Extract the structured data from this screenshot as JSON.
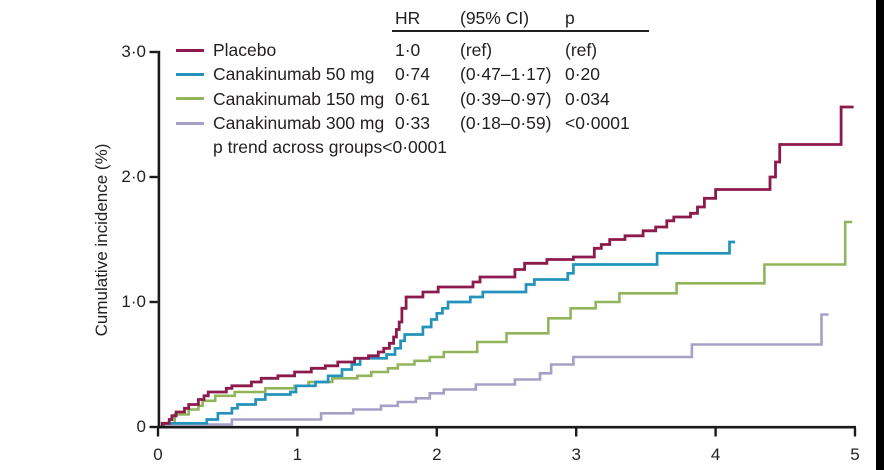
{
  "figure": {
    "y_axis": {
      "label": "Cumulative incidence (%)",
      "tick_labels": [
        "0",
        "1·0",
        "2·0",
        "3·0"
      ],
      "tick_values": [
        0,
        1,
        2,
        3
      ]
    },
    "x_axis": {
      "tick_labels": [
        "0",
        "1",
        "2",
        "3",
        "4",
        "5"
      ],
      "tick_values": [
        0,
        1,
        2,
        3,
        4,
        5
      ]
    },
    "legend": {
      "p_trend": "p trend across groups<0·0001"
    },
    "table": {
      "headers": [
        "HR",
        "(95% CI)",
        "p"
      ],
      "rows": [
        [
          "1·0",
          "(ref)",
          "(ref)"
        ],
        [
          "0·74",
          "(0·47–1·17)",
          "0·20"
        ],
        [
          "0·61",
          "(0·39–0·97)",
          "0·034"
        ],
        [
          "0·33",
          "(0·18–0·59)",
          "<0·0001"
        ]
      ]
    }
  },
  "colors": {
    "placebo": "#8D1A4C",
    "canakinumab_50": "#2493BC",
    "canakinumab_150": "#92B55C",
    "canakinumab_300": "#A7A0C6",
    "text": "#231F20",
    "axis": "#1A1A1A"
  },
  "chart_data": {
    "type": "line",
    "subtype": "step-cumulative-incidence",
    "title": "",
    "xlabel": "",
    "ylabel": "Cumulative incidence (%)",
    "xlim": [
      0,
      5
    ],
    "ylim": [
      0,
      3
    ],
    "x_ticks": [
      0,
      1,
      2,
      3,
      4,
      5
    ],
    "y_ticks": [
      0,
      1,
      2,
      3
    ],
    "grid": false,
    "legend_position": "top-left",
    "annotations": [
      "p trend across groups<0·0001"
    ],
    "series": [
      {
        "name": "Placebo",
        "color": "#8D1A4C",
        "hr": "1·0",
        "ci": "(ref)",
        "p": "(ref)",
        "points": [
          [
            0,
            0
          ],
          [
            0.03,
            0.03
          ],
          [
            0.08,
            0.06
          ],
          [
            0.1,
            0.09
          ],
          [
            0.13,
            0.12
          ],
          [
            0.19,
            0.15
          ],
          [
            0.22,
            0.18
          ],
          [
            0.29,
            0.22
          ],
          [
            0.33,
            0.25
          ],
          [
            0.36,
            0.28
          ],
          [
            0.49,
            0.31
          ],
          [
            0.53,
            0.33
          ],
          [
            0.67,
            0.36
          ],
          [
            0.74,
            0.39
          ],
          [
            0.86,
            0.41
          ],
          [
            0.98,
            0.44
          ],
          [
            1.1,
            0.47
          ],
          [
            1.2,
            0.49
          ],
          [
            1.29,
            0.52
          ],
          [
            1.41,
            0.55
          ],
          [
            1.51,
            0.57
          ],
          [
            1.58,
            0.6
          ],
          [
            1.62,
            0.63
          ],
          [
            1.66,
            0.67
          ],
          [
            1.69,
            0.72
          ],
          [
            1.71,
            0.78
          ],
          [
            1.73,
            0.84
          ],
          [
            1.75,
            0.95
          ],
          [
            1.78,
            1.04
          ],
          [
            1.9,
            1.08
          ],
          [
            2.01,
            1.12
          ],
          [
            2.26,
            1.16
          ],
          [
            2.31,
            1.2
          ],
          [
            2.56,
            1.26
          ],
          [
            2.63,
            1.31
          ],
          [
            2.79,
            1.34
          ],
          [
            2.98,
            1.36
          ],
          [
            3.13,
            1.43
          ],
          [
            3.18,
            1.46
          ],
          [
            3.24,
            1.5
          ],
          [
            3.35,
            1.53
          ],
          [
            3.48,
            1.57
          ],
          [
            3.57,
            1.6
          ],
          [
            3.65,
            1.65
          ],
          [
            3.7,
            1.68
          ],
          [
            3.82,
            1.71
          ],
          [
            3.87,
            1.76
          ],
          [
            3.92,
            1.83
          ],
          [
            4.0,
            1.9
          ],
          [
            4.39,
            2.0
          ],
          [
            4.43,
            2.12
          ],
          [
            4.46,
            2.26
          ],
          [
            4.9,
            2.56
          ],
          [
            4.99,
            2.56
          ]
        ]
      },
      {
        "name": "Canakinumab 50 mg",
        "color": "#2493BC",
        "hr": "0·74",
        "ci": "(0·47–1·17)",
        "p": "0·20",
        "points": [
          [
            0,
            0
          ],
          [
            0.04,
            0.03
          ],
          [
            0.35,
            0.06
          ],
          [
            0.43,
            0.11
          ],
          [
            0.53,
            0.15
          ],
          [
            0.57,
            0.18
          ],
          [
            0.7,
            0.22
          ],
          [
            0.77,
            0.26
          ],
          [
            0.95,
            0.28
          ],
          [
            0.99,
            0.33
          ],
          [
            1.13,
            0.36
          ],
          [
            1.22,
            0.41
          ],
          [
            1.32,
            0.46
          ],
          [
            1.39,
            0.5
          ],
          [
            1.45,
            0.55
          ],
          [
            1.64,
            0.58
          ],
          [
            1.7,
            0.63
          ],
          [
            1.74,
            0.69
          ],
          [
            1.77,
            0.74
          ],
          [
            1.9,
            0.8
          ],
          [
            1.96,
            0.86
          ],
          [
            2.0,
            0.91
          ],
          [
            2.04,
            0.95
          ],
          [
            2.08,
            1.0
          ],
          [
            2.24,
            1.04
          ],
          [
            2.33,
            1.08
          ],
          [
            2.64,
            1.14
          ],
          [
            2.7,
            1.18
          ],
          [
            2.94,
            1.23
          ],
          [
            2.98,
            1.3
          ],
          [
            3.58,
            1.39
          ],
          [
            4.1,
            1.48
          ],
          [
            4.14,
            1.48
          ]
        ]
      },
      {
        "name": "Canakinumab 150 mg",
        "color": "#92B55C",
        "hr": "0·61",
        "ci": "(0·39–0·97)",
        "p": "0·034",
        "points": [
          [
            0,
            0
          ],
          [
            0.05,
            0.03
          ],
          [
            0.12,
            0.1
          ],
          [
            0.22,
            0.14
          ],
          [
            0.29,
            0.17
          ],
          [
            0.32,
            0.21
          ],
          [
            0.41,
            0.25
          ],
          [
            0.55,
            0.28
          ],
          [
            0.77,
            0.31
          ],
          [
            0.98,
            0.33
          ],
          [
            1.08,
            0.36
          ],
          [
            1.25,
            0.39
          ],
          [
            1.43,
            0.41
          ],
          [
            1.53,
            0.44
          ],
          [
            1.65,
            0.47
          ],
          [
            1.72,
            0.5
          ],
          [
            1.84,
            0.53
          ],
          [
            1.95,
            0.56
          ],
          [
            2.05,
            0.6
          ],
          [
            2.29,
            0.68
          ],
          [
            2.5,
            0.75
          ],
          [
            2.8,
            0.87
          ],
          [
            2.96,
            0.95
          ],
          [
            3.14,
            1.0
          ],
          [
            3.31,
            1.07
          ],
          [
            3.72,
            1.15
          ],
          [
            4.35,
            1.3
          ],
          [
            4.93,
            1.64
          ],
          [
            4.98,
            1.64
          ]
        ]
      },
      {
        "name": "Canakinumab 300 mg",
        "color": "#A7A0C6",
        "hr": "0·33",
        "ci": "(0·18–0·59)",
        "p": "<0·0001",
        "points": [
          [
            0,
            0
          ],
          [
            0.05,
            0.02
          ],
          [
            0.53,
            0.06
          ],
          [
            1.17,
            0.11
          ],
          [
            1.4,
            0.14
          ],
          [
            1.6,
            0.17
          ],
          [
            1.72,
            0.2
          ],
          [
            1.85,
            0.23
          ],
          [
            1.95,
            0.27
          ],
          [
            2.05,
            0.3
          ],
          [
            2.28,
            0.34
          ],
          [
            2.56,
            0.38
          ],
          [
            2.74,
            0.43
          ],
          [
            2.82,
            0.5
          ],
          [
            2.98,
            0.56
          ],
          [
            3.83,
            0.66
          ],
          [
            4.76,
            0.9
          ],
          [
            4.81,
            0.9
          ]
        ]
      }
    ]
  }
}
